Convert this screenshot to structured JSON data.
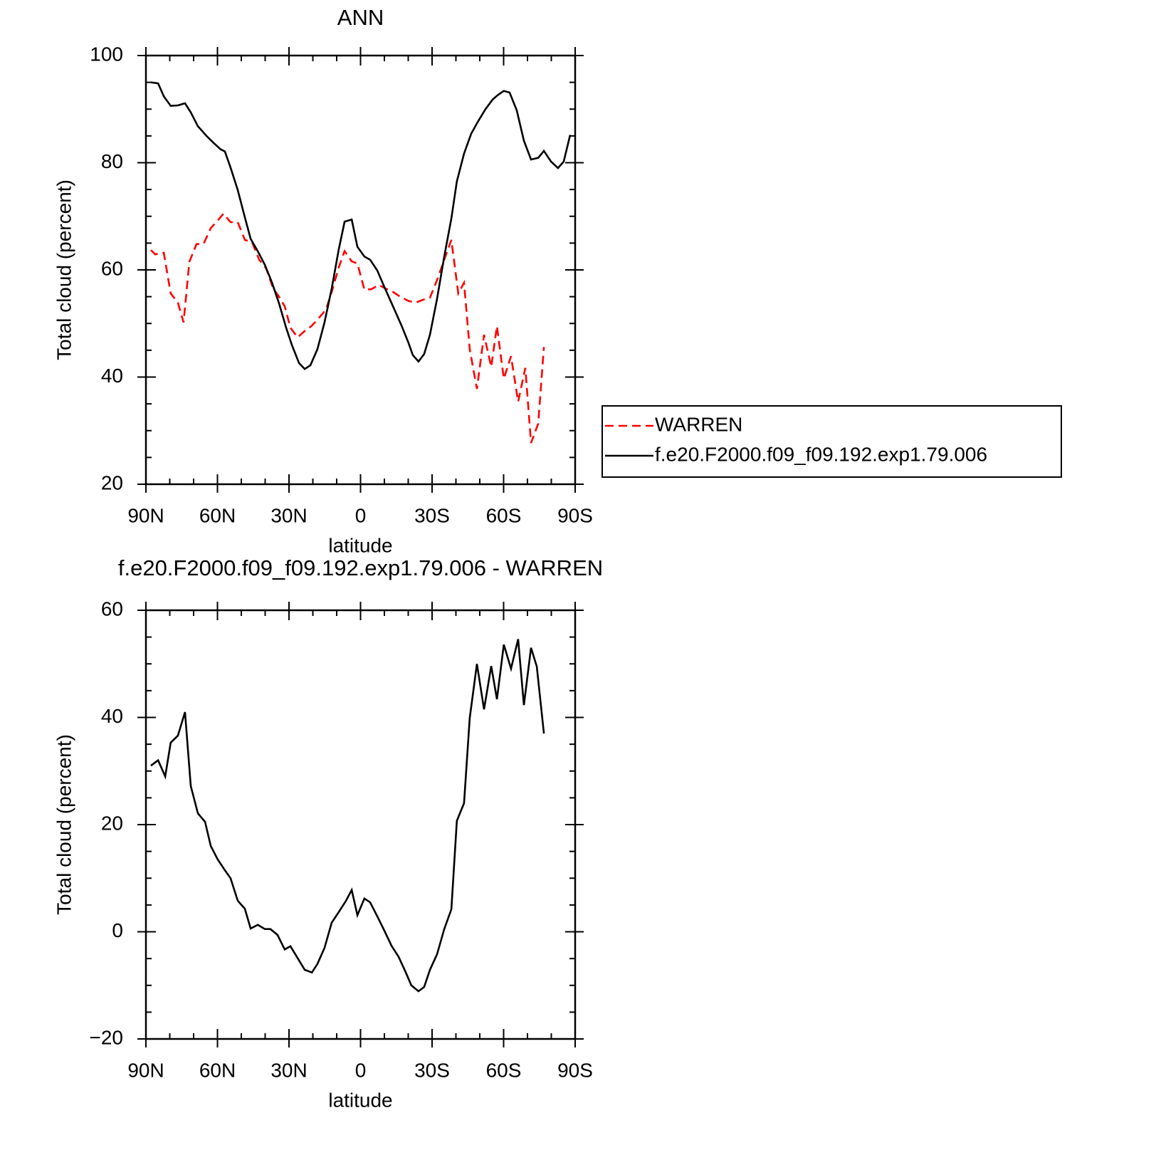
{
  "chart_data": [
    {
      "type": "line",
      "title": "ANN",
      "x_label": "latitude",
      "y_label": "Total cloud (percent)",
      "xlim": [
        90,
        -90
      ],
      "xticks": [
        {
          "value": 90,
          "label": "90N"
        },
        {
          "value": 60,
          "label": "60N"
        },
        {
          "value": 30,
          "label": "30N"
        },
        0,
        {
          "value": -30,
          "label": "30S"
        },
        {
          "value": -60,
          "label": "60S"
        },
        {
          "value": -90,
          "label": "90S"
        }
      ],
      "ylim": [
        20,
        100
      ],
      "yticks": [
        20,
        40,
        60,
        80,
        100
      ],
      "legend": "right",
      "series": [
        {
          "name": "WARREN",
          "color": "#ff0000",
          "dash": true,
          "x": [
            87.9,
            86.1,
            82.5,
            79.6,
            76.6,
            74.2,
            71.8,
            68.8,
            65.8,
            62.8,
            59.9,
            57.5,
            54.5,
            51.5,
            48.5,
            45.5,
            42.5,
            39.6,
            36.6,
            34.2,
            31.8,
            29.4,
            26.4,
            23.4,
            20.4,
            17.5,
            14.5,
            12.1,
            9.1,
            6.7,
            3.7,
            1.3,
            -1.6,
            -4.6,
            -7.6,
            -10.6,
            -13.6,
            -16.6,
            -20.1,
            -23.1,
            -26.1,
            -29.1,
            -32.1,
            -35.1,
            -38.1,
            -41.0,
            -43.4,
            -45.8,
            -48.8,
            -51.8,
            -54.8,
            -57.2,
            -60.1,
            -63.1,
            -66.1,
            -69.1,
            -71.5,
            -74.5,
            -76.9
          ],
          "values": [
            63.7,
            62.9,
            63.2,
            55.6,
            53.9,
            50.2,
            61.5,
            64.8,
            64.9,
            67.8,
            69.2,
            70.5,
            68.9,
            68.9,
            65.6,
            65.2,
            61.9,
            60.3,
            56.5,
            55.0,
            53.2,
            49.2,
            47.4,
            48.6,
            49.6,
            51.0,
            52.6,
            55.9,
            60.5,
            63.5,
            61.6,
            61.2,
            56.3,
            56.4,
            57.2,
            56.5,
            55.9,
            55.0,
            54.2,
            53.9,
            54.4,
            54.8,
            58.1,
            61.9,
            65.6,
            55.6,
            57.6,
            45.2,
            37.8,
            47.9,
            41.9,
            49.5,
            39.7,
            43.9,
            35.4,
            41.7,
            27.7,
            31.3,
            45.6
          ]
        },
        {
          "name": "f.e20.F2000.f09_f09.192.exp1.79.006",
          "color": "#000000",
          "dash": false,
          "x": [
            87.9,
            84.9,
            82.5,
            79.6,
            76.6,
            73.6,
            71.2,
            68.2,
            64.6,
            61.6,
            58.7,
            56.9,
            54.5,
            51.5,
            48.5,
            46.1,
            43.1,
            40.1,
            37.2,
            34.2,
            31.2,
            28.8,
            25.8,
            23.4,
            21.0,
            18.1,
            15.1,
            12.1,
            9.1,
            6.7,
            3.7,
            1.3,
            -1.6,
            -4.0,
            -7.0,
            -10.0,
            -13.6,
            -17.2,
            -20.1,
            -21.9,
            -24.3,
            -26.7,
            -29.1,
            -32.1,
            -35.1,
            -38.1,
            -40.4,
            -43.4,
            -46.4,
            -49.4,
            -52.4,
            -55.4,
            -57.8,
            -60.1,
            -62.5,
            -65.5,
            -68.5,
            -71.5,
            -74.5,
            -76.9,
            -79.9,
            -82.8,
            -85.2,
            -87.9
          ],
          "values": [
            95.0,
            94.8,
            92.4,
            90.6,
            90.7,
            91.1,
            89.4,
            86.8,
            85.0,
            83.7,
            82.5,
            82.1,
            79.1,
            74.9,
            69.8,
            65.8,
            63.5,
            60.9,
            57.7,
            53.8,
            49.2,
            46.0,
            42.6,
            41.5,
            42.2,
            45.2,
            50.2,
            56.5,
            63.9,
            69.0,
            69.4,
            64.3,
            62.5,
            61.9,
            59.9,
            56.8,
            53.2,
            49.6,
            46.4,
            44.1,
            42.9,
            44.3,
            47.9,
            54.6,
            62.5,
            69.6,
            76.5,
            81.7,
            85.4,
            87.8,
            90.0,
            91.8,
            92.7,
            93.4,
            93.1,
            89.8,
            84.1,
            80.6,
            80.9,
            82.2,
            80.2,
            79.0,
            80.2,
            85.2
          ]
        }
      ]
    },
    {
      "type": "line",
      "title": "f.e20.F2000.f09_f09.192.exp1.79.006 - WARREN",
      "x_label": "latitude",
      "y_label": "Total cloud (percent)",
      "xlim": [
        90,
        -90
      ],
      "xticks": [
        {
          "value": 90,
          "label": "90N"
        },
        {
          "value": 60,
          "label": "60N"
        },
        {
          "value": 30,
          "label": "30N"
        },
        0,
        {
          "value": -30,
          "label": "30S"
        },
        {
          "value": -60,
          "label": "60S"
        },
        {
          "value": -90,
          "label": "90S"
        }
      ],
      "ylim": [
        -20,
        60
      ],
      "yticks": [
        {
          "value": -20,
          "label": "−20"
        },
        0,
        20,
        40,
        60
      ],
      "series": [
        {
          "color": "#000000",
          "dash": false,
          "x": [
            87.9,
            84.9,
            81.9,
            79.6,
            76.6,
            73.6,
            71.2,
            68.2,
            65.2,
            62.8,
            59.9,
            56.9,
            54.5,
            51.5,
            48.5,
            46.1,
            43.1,
            40.1,
            37.8,
            34.8,
            31.8,
            29.4,
            26.4,
            23.4,
            20.4,
            18.1,
            15.1,
            12.1,
            9.1,
            6.1,
            3.7,
            1.3,
            -1.6,
            -4.0,
            -7.0,
            -10.0,
            -13.0,
            -16.0,
            -19.0,
            -21.3,
            -24.3,
            -26.7,
            -29.1,
            -32.1,
            -35.1,
            -38.1,
            -40.4,
            -43.4,
            -45.8,
            -48.8,
            -51.8,
            -54.8,
            -57.2,
            -60.1,
            -63.1,
            -66.1,
            -68.5,
            -71.5,
            -73.9,
            -76.9
          ],
          "values": [
            31.0,
            32.0,
            29.0,
            35.3,
            36.6,
            41.0,
            27.2,
            22.1,
            20.5,
            16.0,
            13.5,
            11.5,
            10.0,
            5.8,
            4.3,
            0.6,
            1.3,
            0.5,
            0.5,
            -0.6,
            -3.3,
            -2.7,
            -4.9,
            -7.1,
            -7.6,
            -6.0,
            -3.0,
            1.7,
            3.7,
            5.8,
            7.8,
            3.1,
            6.2,
            5.5,
            2.9,
            0.2,
            -2.6,
            -4.7,
            -7.6,
            -10.0,
            -11.1,
            -10.3,
            -7.1,
            -4.2,
            0.5,
            4.2,
            20.7,
            24.0,
            39.9,
            50.0,
            41.5,
            49.6,
            43.4,
            53.6,
            49.1,
            54.6,
            42.3,
            53.0,
            49.5,
            37.0
          ]
        }
      ]
    }
  ]
}
